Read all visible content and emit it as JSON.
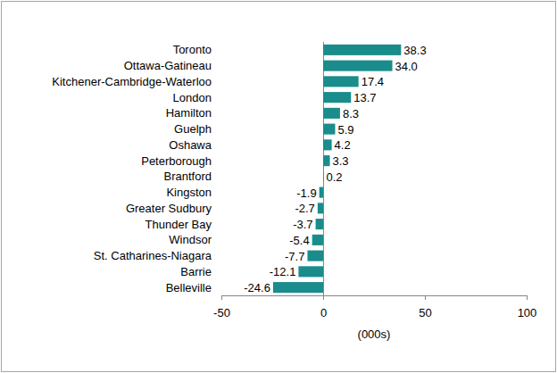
{
  "chart_data": {
    "type": "bar",
    "orientation": "horizontal",
    "categories": [
      "Toronto",
      "Ottawa-Gatineau",
      "Kitchener-Cambridge-Waterloo",
      "London",
      "Hamilton",
      "Guelph",
      "Oshawa",
      "Peterborough",
      "Brantford",
      "Kingston",
      "Greater Sudbury",
      "Thunder Bay",
      "Windsor",
      "St. Catharines-Niagara",
      "Barrie",
      "Belleville"
    ],
    "values": [
      38.3,
      34.0,
      17.4,
      13.7,
      8.3,
      5.9,
      4.2,
      3.3,
      0.2,
      -1.9,
      -2.7,
      -3.7,
      -5.4,
      -7.7,
      -12.1,
      -24.6
    ],
    "value_labels": [
      "38.3",
      "34.0",
      "17.4",
      "13.7",
      "8.3",
      "5.9",
      "4.2",
      "3.3",
      "0.2",
      "-1.9",
      "-2.7",
      "-3.7",
      "-5.4",
      "-7.7",
      "-12.1",
      "-24.6"
    ],
    "color": "#1a8c8c",
    "data_labels": true,
    "grid": false,
    "xlabel": "(000s)",
    "xlim": [
      -50,
      100
    ],
    "xticks": [
      -50,
      0,
      50,
      100
    ]
  }
}
